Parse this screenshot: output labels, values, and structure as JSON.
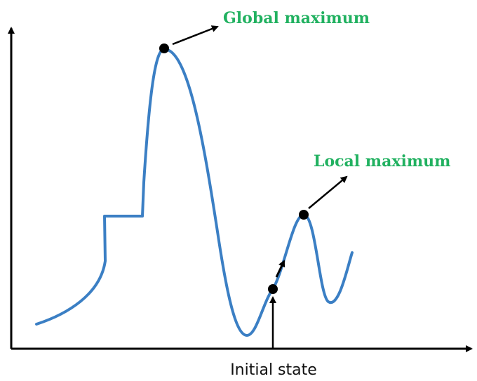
{
  "labels": {
    "global_maximum": "Global maximum",
    "local_maximum": "Local maximum",
    "initial_state": "Initial state"
  },
  "colors": {
    "curve": "#3b7fc4",
    "annotation_text": "#21b160",
    "axis": "#000000",
    "point": "#000000"
  }
}
